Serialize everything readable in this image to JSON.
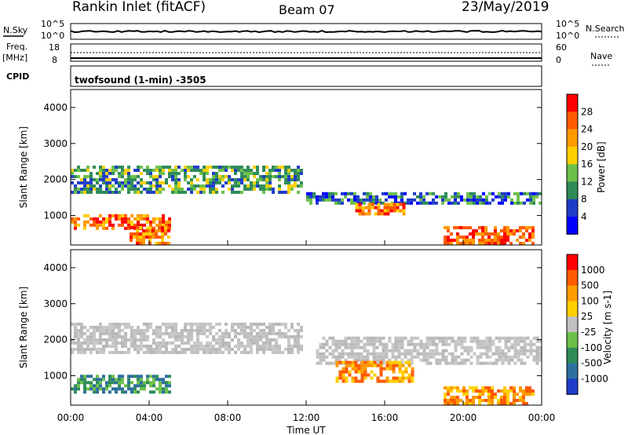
{
  "header": {
    "station": "Rankin Inlet (fitACF)",
    "beam": "Beam 07",
    "date": "23/May/2019"
  },
  "top_panels": {
    "nsky_label": "N.Sky",
    "nsearch_label": "N.Search",
    "noise_ticks": [
      "10^5",
      "10^0"
    ],
    "freq_label_1": "Freq.",
    "freq_label_2": "[MHz]",
    "freq_ticks": [
      "18",
      "8"
    ],
    "nave_label": "Nave",
    "nave_ticks": [
      "60",
      "0"
    ],
    "cpid_label": "CPID",
    "cpid_value": "twofsound (1-min) -3505"
  },
  "chart_data": [
    {
      "type": "heatmap",
      "panel": "power",
      "ylabel": "Slant Range [km]",
      "xlabel": "",
      "x_ticks": [
        "00:00",
        "04:00",
        "08:00",
        "12:00",
        "16:00",
        "20:00",
        "00:00"
      ],
      "y_ticks": [
        1000,
        2000,
        3000,
        4000
      ],
      "xlim_hours": [
        0,
        24
      ],
      "ylim_km": [
        180,
        4500
      ],
      "colorbar": {
        "label": "Power [dB]",
        "ticks": [
          "4",
          "8",
          "12",
          "16",
          "20",
          "24",
          "28"
        ],
        "colors": [
          "#0000ff",
          "#1e3cc8",
          "#2e8b57",
          "#6cc04a",
          "#ffd000",
          "#ff9a00",
          "#ff5a00",
          "#ff0000"
        ]
      },
      "regions": [
        {
          "x0": 0.0,
          "x1": 11.8,
          "y0": 1600,
          "y1": 2350,
          "value": "mixed-green-blue"
        },
        {
          "x0": 0.0,
          "x1": 5.0,
          "y0": 600,
          "y1": 1000,
          "value": "orange-red"
        },
        {
          "x0": 3.0,
          "x1": 5.0,
          "y0": 180,
          "y1": 700,
          "value": "orange-red"
        },
        {
          "x0": 12.0,
          "x1": 24.0,
          "y0": 1300,
          "y1": 1600,
          "value": "blue-green"
        },
        {
          "x0": 14.5,
          "x1": 17.0,
          "y0": 1000,
          "y1": 1300,
          "value": "orange-red"
        },
        {
          "x0": 19.0,
          "x1": 23.5,
          "y0": 180,
          "y1": 700,
          "value": "red"
        }
      ]
    },
    {
      "type": "heatmap",
      "panel": "velocity",
      "ylabel": "Slant Range [km]",
      "xlabel": "Time UT",
      "x_ticks": [
        "00:00",
        "04:00",
        "08:00",
        "12:00",
        "16:00",
        "20:00",
        "00:00"
      ],
      "y_ticks": [
        1000,
        2000,
        3000,
        4000
      ],
      "xlim_hours": [
        0,
        24
      ],
      "ylim_km": [
        180,
        4500
      ],
      "colorbar": {
        "label": "Velocity [m s-1]",
        "ticks": [
          "1000",
          "500",
          "100",
          "25",
          "-25",
          "-100",
          "-500",
          "-1000"
        ],
        "colors": [
          "#1e3cc8",
          "#2e6f9f",
          "#2e8b57",
          "#6cc04a",
          "#c0c0c0",
          "#ffd000",
          "#ff9a00",
          "#ff5a00",
          "#ff0000"
        ]
      },
      "regions": [
        {
          "x0": 0.0,
          "x1": 11.8,
          "y0": 1600,
          "y1": 2400,
          "value": "ground-scatter-grey"
        },
        {
          "x0": 0.0,
          "x1": 5.0,
          "y0": 500,
          "y1": 1000,
          "value": "green"
        },
        {
          "x0": 12.5,
          "x1": 24.0,
          "y0": 1300,
          "y1": 2000,
          "value": "ground-scatter-grey"
        },
        {
          "x0": 13.5,
          "x1": 17.5,
          "y0": 800,
          "y1": 1400,
          "value": "orange"
        },
        {
          "x0": 19.0,
          "x1": 23.5,
          "y0": 180,
          "y1": 700,
          "value": "orange"
        }
      ]
    }
  ]
}
